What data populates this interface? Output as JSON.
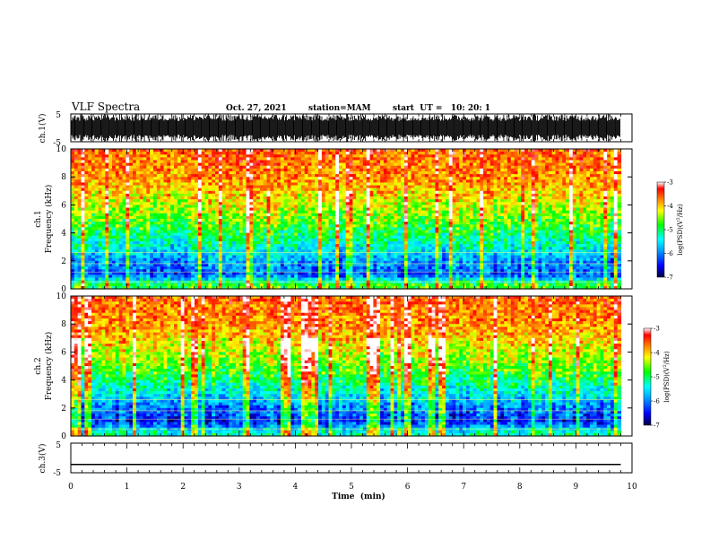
{
  "header": {
    "title": "VLF Spectra",
    "date": "Oct. 27, 2021",
    "station": "station=MAM",
    "start": "start  UT =   10: 20: 1"
  },
  "chart_data": [
    {
      "type": "line",
      "name": "ch1-waveform",
      "ylabel": "ch.1(V)",
      "ylim": [
        -5,
        5
      ],
      "yticks": [
        "5",
        "-5"
      ],
      "xlim": [
        0,
        10
      ],
      "description": "dense broadband waveform, amplitude roughly +/-4 V, data ends at ~9.8 min"
    },
    {
      "type": "heatmap",
      "name": "ch1-spectrogram",
      "ylabel": "ch.1\nFrequency (kHz)",
      "ylim": [
        0,
        10
      ],
      "yticks": [
        "0",
        "2",
        "4",
        "6",
        "8",
        "10"
      ],
      "xlim": [
        0,
        10
      ],
      "data_end_min": 9.8,
      "colorbar": {
        "label": "log(PSD)(V²/Hz)",
        "range": [
          -7,
          -3
        ],
        "ticks": [
          "-3",
          "-4",
          "-5",
          "-6",
          "-7"
        ]
      },
      "profile_log_psd": [
        {
          "freq_khz": 0.3,
          "value": -4.8
        },
        {
          "freq_khz": 1.0,
          "value": -6.2
        },
        {
          "freq_khz": 2.0,
          "value": -5.9
        },
        {
          "freq_khz": 3.0,
          "value": -5.4
        },
        {
          "freq_khz": 4.0,
          "value": -5.0
        },
        {
          "freq_khz": 5.0,
          "value": -4.6
        },
        {
          "freq_khz": 6.0,
          "value": -4.3
        },
        {
          "freq_khz": 7.0,
          "value": -4.0
        },
        {
          "freq_khz": 8.0,
          "value": -3.8
        },
        {
          "freq_khz": 9.0,
          "value": -3.7
        },
        {
          "freq_khz": 10.0,
          "value": -3.6
        }
      ]
    },
    {
      "type": "heatmap",
      "name": "ch2-spectrogram",
      "ylabel": "ch.2\nFrequency (kHz)",
      "ylim": [
        0,
        10
      ],
      "yticks": [
        "0",
        "2",
        "4",
        "6",
        "8",
        "10"
      ],
      "xlim": [
        0,
        10
      ],
      "data_end_min": 9.8,
      "colorbar": {
        "label": "log(PSD)(V²/Hz)",
        "range": [
          -7,
          -3
        ],
        "ticks": [
          "-3",
          "-4",
          "-5",
          "-6",
          "-7"
        ]
      },
      "profile_log_psd": [
        {
          "freq_khz": 0.3,
          "value": -5.3
        },
        {
          "freq_khz": 1.0,
          "value": -6.4
        },
        {
          "freq_khz": 2.0,
          "value": -6.0
        },
        {
          "freq_khz": 3.0,
          "value": -5.5
        },
        {
          "freq_khz": 4.0,
          "value": -5.0
        },
        {
          "freq_khz": 5.0,
          "value": -4.6
        },
        {
          "freq_khz": 6.0,
          "value": -4.3
        },
        {
          "freq_khz": 7.0,
          "value": -4.0
        },
        {
          "freq_khz": 8.0,
          "value": -3.8
        },
        {
          "freq_khz": 9.0,
          "value": -3.7
        },
        {
          "freq_khz": 10.0,
          "value": -3.6
        }
      ]
    },
    {
      "type": "line",
      "name": "ch3-waveform",
      "ylabel": "ch.3(V)",
      "ylim": [
        -5,
        5
      ],
      "yticks": [
        "5",
        "-5"
      ],
      "xlim": [
        0,
        10
      ],
      "x": [
        0,
        9.8
      ],
      "y": [
        -2.2,
        -2.2
      ]
    }
  ],
  "xaxis": {
    "label": "Time  (min)",
    "ticks": [
      "0",
      "1",
      "2",
      "3",
      "4",
      "5",
      "6",
      "7",
      "8",
      "9",
      "10"
    ]
  },
  "colors": {
    "scale": [
      "#000050",
      "#0000ff",
      "#00a0ff",
      "#00ffff",
      "#00ff00",
      "#ffff00",
      "#ff8000",
      "#ff0000",
      "#ffffff"
    ]
  }
}
